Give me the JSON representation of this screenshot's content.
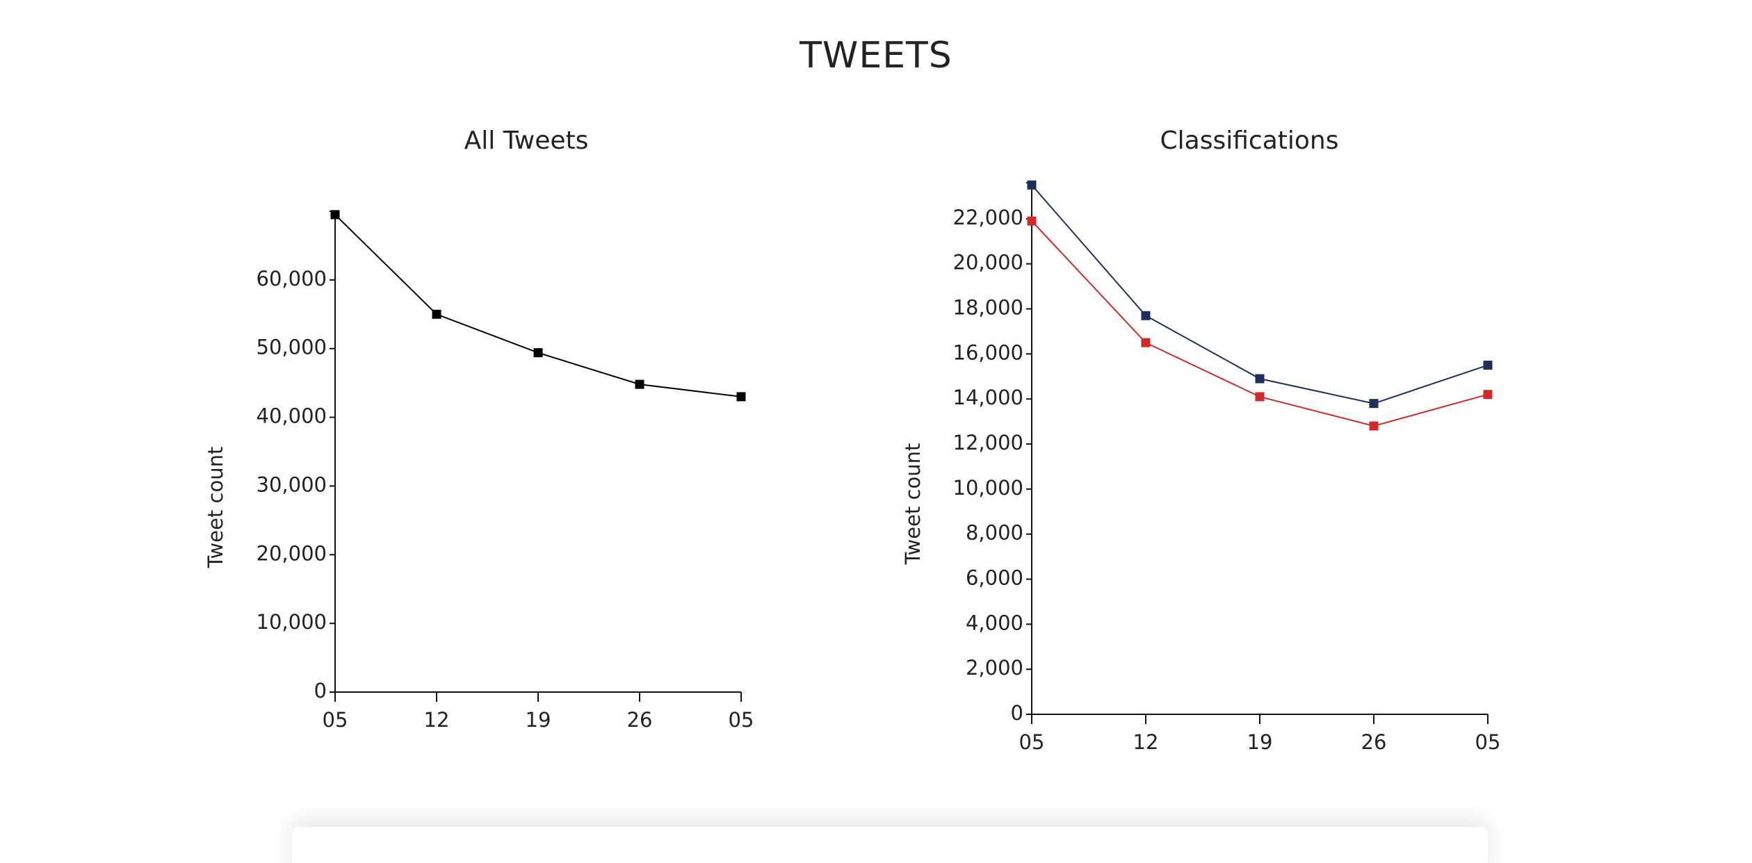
{
  "page": {
    "title": "TWEETS"
  },
  "chart_data": [
    {
      "type": "line",
      "title": "All Tweets",
      "xlabel": "",
      "ylabel": "Tweet count",
      "x": [
        "05",
        "12",
        "19",
        "26",
        "05"
      ],
      "ylim": [
        0,
        70000
      ],
      "yticks": [
        0,
        10000,
        20000,
        30000,
        40000,
        50000,
        60000
      ],
      "ytick_labels": [
        "0",
        "10,000",
        "20,000",
        "30,000",
        "40,000",
        "50,000",
        "60,000"
      ],
      "grid": false,
      "series": [
        {
          "color": "#000000",
          "values": [
            69500,
            55000,
            49400,
            44800,
            43000
          ]
        }
      ]
    },
    {
      "type": "line",
      "title": "Classifications",
      "xlabel": "",
      "ylabel": "Tweet count",
      "x": [
        "05",
        "12",
        "19",
        "26",
        "05"
      ],
      "ylim": [
        0,
        23600
      ],
      "yticks": [
        0,
        2000,
        4000,
        6000,
        8000,
        10000,
        12000,
        14000,
        16000,
        18000,
        20000,
        22000
      ],
      "ytick_labels": [
        "0",
        "2,000",
        "4,000",
        "6,000",
        "8,000",
        "10,000",
        "12,000",
        "14,000",
        "16,000",
        "18,000",
        "20,000",
        "22,000"
      ],
      "grid": false,
      "series": [
        {
          "color": "#1f2f5c",
          "values": [
            23500,
            17700,
            14900,
            13800,
            15500
          ]
        },
        {
          "color": "#d02a2a",
          "values": [
            21900,
            16500,
            14100,
            12800,
            14200
          ]
        }
      ]
    }
  ]
}
